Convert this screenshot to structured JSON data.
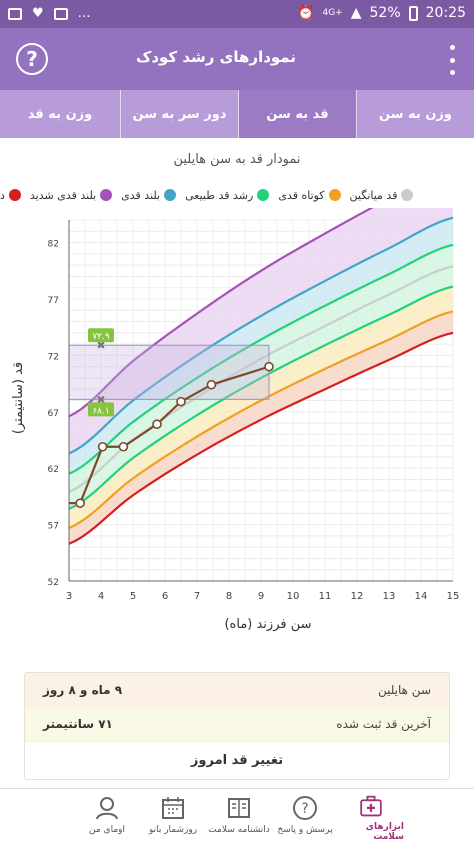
{
  "status_bar": {
    "battery": "52%",
    "time": "20:25",
    "network": "4G+"
  },
  "app": {
    "title": "نمودارهای رشد کودک",
    "help_label": "?"
  },
  "tabs": [
    {
      "label": "وزن به سن",
      "active": false
    },
    {
      "label": "قد به سن",
      "active": true
    },
    {
      "label": "دور سر به سن",
      "active": false
    },
    {
      "label": "وزن به قد",
      "active": false
    }
  ],
  "chart": {
    "title": "نمودار قد به سن هایلین",
    "legend": [
      {
        "label": "بلند قدی شدید",
        "color": "#a452b8"
      },
      {
        "label": "بلند قدی",
        "color": "#42a5c8"
      },
      {
        "label": "رشد قد طبیعی",
        "color": "#22d27a"
      },
      {
        "label": "کوتاه قدی",
        "color": "#f0a020"
      },
      {
        "label": "قد میانگین",
        "color": "#cccccc"
      }
    ],
    "legend_lead": {
      "label": "د",
      "color": "#d42020"
    },
    "marker_labels": [
      "۷۲.۹",
      "۶۸.۱"
    ]
  },
  "chart_data": {
    "type": "line",
    "xlabel": "سن فرزند (ماه)",
    "ylabel": "قد (سانتیمتر)",
    "xlim": [
      3,
      15
    ],
    "ylim": [
      52,
      84
    ],
    "x_ticks": [
      3,
      4,
      5,
      6,
      7,
      8,
      9,
      10,
      11,
      12,
      13,
      14,
      15
    ],
    "y_ticks": [
      52,
      57,
      62,
      67,
      72,
      77,
      82
    ],
    "grid": true,
    "reference_x": [
      3,
      5,
      7,
      9,
      11,
      13,
      15
    ],
    "reference_series": [
      {
        "name": "کوتاه قدی",
        "color": "#d42020",
        "values": [
          55.3,
          59.6,
          63.2,
          66.3,
          69.0,
          71.6,
          74.0
        ]
      },
      {
        "name": "کوتاه قدی",
        "color": "#f0a020",
        "values": [
          56.7,
          61.1,
          64.8,
          68.0,
          70.8,
          73.4,
          75.9
        ]
      },
      {
        "name": "رشد قد طبیعی",
        "color": "#22d27a",
        "values": [
          58.4,
          62.9,
          66.7,
          70.0,
          72.9,
          75.6,
          78.1
        ]
      },
      {
        "name": "قد میانگین",
        "color": "#cccccc",
        "values": [
          59.9,
          64.5,
          68.3,
          71.7,
          74.6,
          77.4,
          79.9
        ]
      },
      {
        "name": "رشد قد طبیعی",
        "color": "#22d27a",
        "values": [
          61.5,
          66.1,
          70.0,
          73.4,
          76.4,
          79.2,
          81.8
        ]
      },
      {
        "name": "بلند قدی",
        "color": "#42a5c8",
        "values": [
          63.3,
          68.0,
          72.0,
          75.5,
          78.6,
          81.5,
          84.2
        ]
      },
      {
        "name": "بلند قدی شدید",
        "color": "#a452b8",
        "values": [
          66.6,
          71.5,
          75.7,
          79.5,
          82.8,
          85.9,
          88.8
        ]
      }
    ],
    "child_series": {
      "name": "هایلین",
      "color": "#7a4a2a",
      "x": [
        3.0,
        3.35,
        4.05,
        4.7,
        5.75,
        6.5,
        7.45,
        9.25
      ],
      "y": [
        58.9,
        58.9,
        63.9,
        63.9,
        65.9,
        67.9,
        69.4,
        71.0
      ]
    },
    "highlight": {
      "x_range": [
        4.0,
        9.25
      ],
      "y_top": 72.9,
      "y_bottom": 68.1
    }
  },
  "info": {
    "age_label": "سن هایلین",
    "age_value": "۹ ماه و ۸ روز",
    "height_label": "آخرین قد ثبت شده",
    "height_value": "۷۱ سانتیمتر",
    "change_button": "تغییر قد امروز"
  },
  "bottom_nav": [
    {
      "label": "ابزارهای سلامت",
      "icon": "medical-kit-icon",
      "active": true
    },
    {
      "label": "پرسش و پاسخ",
      "icon": "question-icon",
      "active": false
    },
    {
      "label": "دانشنامه سلامت",
      "icon": "encyclopedia-icon",
      "active": false
    },
    {
      "label": "روزشمار بانو",
      "icon": "calendar-icon",
      "active": false
    },
    {
      "label": "اومای من",
      "icon": "profile-icon",
      "active": false
    }
  ]
}
